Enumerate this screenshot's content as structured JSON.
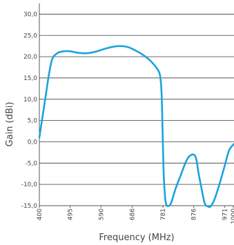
{
  "chart_data": {
    "type": "line",
    "title": "",
    "xlabel": "Frequency (MHz)",
    "ylabel": "Gain (dBi)",
    "xlim": [
      400,
      1000
    ],
    "ylim": [
      -15,
      32.5
    ],
    "x_ticks": [
      400,
      495,
      590,
      686,
      781,
      876,
      971,
      1000
    ],
    "x_tick_labels": [
      "400",
      "495",
      "590",
      "686",
      "781",
      "876",
      "971",
      "1000"
    ],
    "y_ticks": [
      -15,
      -10,
      -5,
      0,
      5,
      10,
      15,
      20,
      25,
      30
    ],
    "y_tick_labels": [
      "-15,0",
      "-10,0",
      "-5,0",
      "0,0",
      "5,0",
      "10,0",
      "15,0",
      "20,0",
      "25,0",
      "30,0"
    ],
    "grid": true,
    "series": [
      {
        "color": "#1aa3dd",
        "x": [
          400,
          410,
          420,
          430,
          440,
          455,
          470,
          485,
          500,
          520,
          545,
          570,
          600,
          625,
          650,
          675,
          700,
          720,
          740,
          760,
          772,
          777,
          780,
          783,
          787,
          790,
          795,
          800,
          805,
          810,
          820,
          835,
          850,
          860,
          870,
          875,
          880,
          885,
          890,
          900,
          910,
          920,
          925,
          930,
          940,
          955,
          970,
          985,
          1000
        ],
        "y": [
          1,
          6,
          11,
          16,
          19.5,
          20.8,
          21.2,
          21.3,
          21.2,
          20.9,
          20.8,
          21.1,
          21.8,
          22.3,
          22.5,
          22.2,
          21.3,
          20.4,
          19.2,
          17.5,
          15.6,
          11,
          2,
          -7,
          -12.5,
          -14.4,
          -15.1,
          -15,
          -14.6,
          -13.5,
          -11,
          -8,
          -5,
          -3.6,
          -3,
          -3,
          -3.3,
          -4.5,
          -7,
          -11,
          -14.5,
          -15.2,
          -15.3,
          -15,
          -13.5,
          -10,
          -6,
          -2,
          -0.5
        ]
      }
    ]
  }
}
